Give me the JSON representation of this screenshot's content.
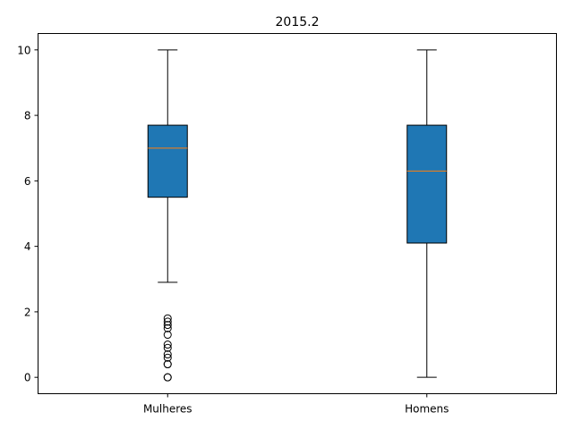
{
  "chart_data": {
    "type": "box",
    "title": "2015.2",
    "xlabel": "",
    "ylabel": "",
    "categories": [
      "Mulheres",
      "Homens"
    ],
    "ylim": [
      -0.5,
      10.5
    ],
    "yticks": [
      0,
      2,
      4,
      6,
      8,
      10
    ],
    "ytick_labels": [
      "0",
      "2",
      "4",
      "6",
      "8",
      "10"
    ],
    "grid": false,
    "box_color": "#1f77b4",
    "median_color": "#ff7f0e",
    "series": [
      {
        "whisker_low": 2.9,
        "q1": 5.5,
        "median": 7.0,
        "q3": 7.7,
        "whisker_high": 10.0,
        "outliers": [
          0.0,
          0.0,
          0.4,
          0.4,
          0.6,
          0.7,
          0.9,
          1.0,
          1.3,
          1.5,
          1.6,
          1.7,
          1.8
        ]
      },
      {
        "whisker_low": 0.0,
        "q1": 4.1,
        "median": 6.3,
        "q3": 7.7,
        "whisker_high": 10.0,
        "outliers": []
      }
    ]
  }
}
